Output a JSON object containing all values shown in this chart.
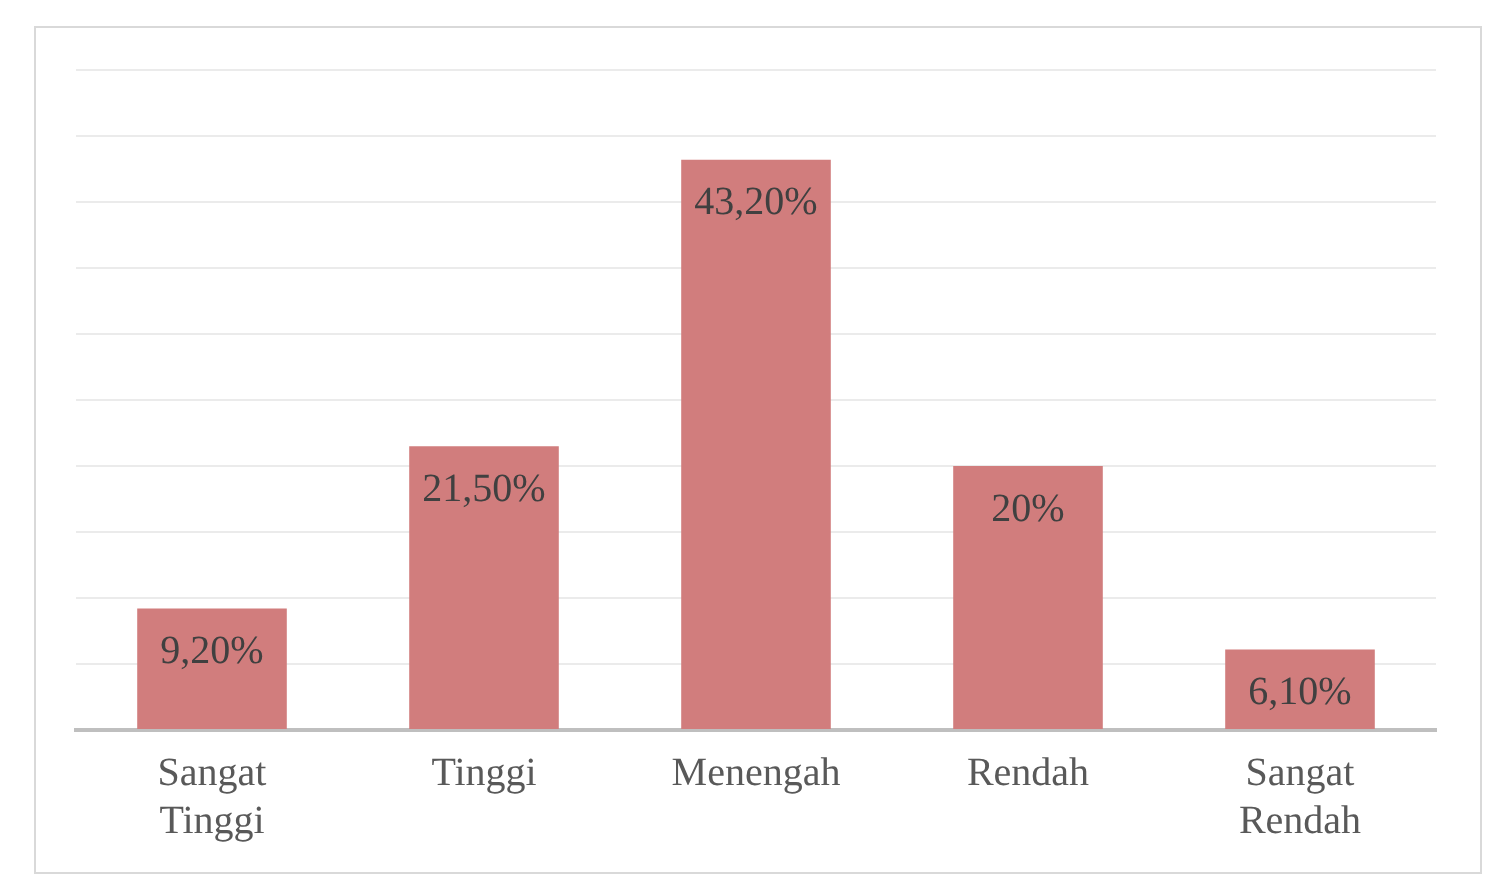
{
  "chart_data": {
    "type": "bar",
    "categories": [
      "Sangat Tinggi",
      "Tinggi",
      "Menengah",
      "Rendah",
      "Sangat Rendah"
    ],
    "values": [
      9.2,
      21.5,
      43.2,
      20,
      6.1
    ],
    "value_labels": [
      "9,20%",
      "21,50%",
      "43,20%",
      "20%",
      "6,10%"
    ],
    "color": "#d17d7d",
    "ylim": [
      0,
      50
    ],
    "yticks": [
      {
        "value": 0,
        "label": null
      },
      {
        "value": 5,
        "label": null
      },
      {
        "value": 10,
        "label": null
      },
      {
        "value": 15,
        "label": null
      },
      {
        "value": 20,
        "label": null
      },
      {
        "value": 25,
        "label": null
      },
      {
        "value": 30,
        "label": null
      },
      {
        "value": 35,
        "label": null
      },
      {
        "value": 40,
        "label": null
      },
      {
        "value": 45,
        "label": null
      },
      {
        "value": 50,
        "label": null
      }
    ],
    "tick_labels": "x",
    "grid": "y",
    "legend": false
  }
}
